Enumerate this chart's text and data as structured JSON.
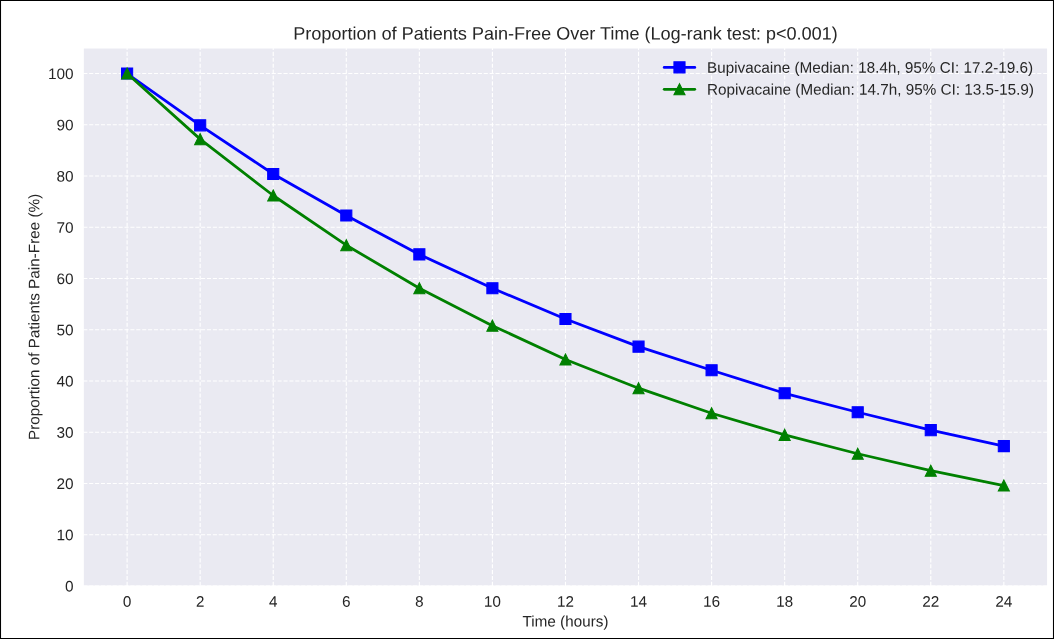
{
  "chart_data": {
    "type": "line",
    "title": "Proportion of Patients Pain-Free Over Time (Log-rank test: p<0.001)",
    "xlabel": "Time (hours)",
    "ylabel": "Proportion of Patients Pain-Free (%)",
    "x": [
      0,
      2,
      4,
      6,
      8,
      10,
      12,
      14,
      16,
      18,
      20,
      22,
      24
    ],
    "series": [
      {
        "name": "Bupivacaine (Median: 18.4h, 95% CI: 17.2-19.6)",
        "color": "#0000ff",
        "marker": "square",
        "values": [
          100,
          89.9,
          80.4,
          72.3,
          64.7,
          58.1,
          52.1,
          46.7,
          42.1,
          37.6,
          33.9,
          30.4,
          27.3
        ]
      },
      {
        "name": "Ropivacaine (Median: 14.7h, 95% CI: 13.5-15.9)",
        "color": "#008000",
        "marker": "triangle",
        "values": [
          100,
          87.2,
          76.2,
          66.5,
          58.1,
          50.8,
          44.2,
          38.6,
          33.7,
          29.5,
          25.8,
          22.5,
          19.6
        ]
      }
    ],
    "xlim": [
      -1.2,
      25.2
    ],
    "ylim": [
      0,
      105
    ],
    "xticks": [
      0,
      2,
      4,
      6,
      8,
      10,
      12,
      14,
      16,
      18,
      20,
      22,
      24
    ],
    "yticks": [
      0,
      10,
      20,
      30,
      40,
      50,
      60,
      70,
      80,
      90,
      100
    ],
    "grid": true,
    "legend": "top right",
    "line_style": "solid"
  }
}
